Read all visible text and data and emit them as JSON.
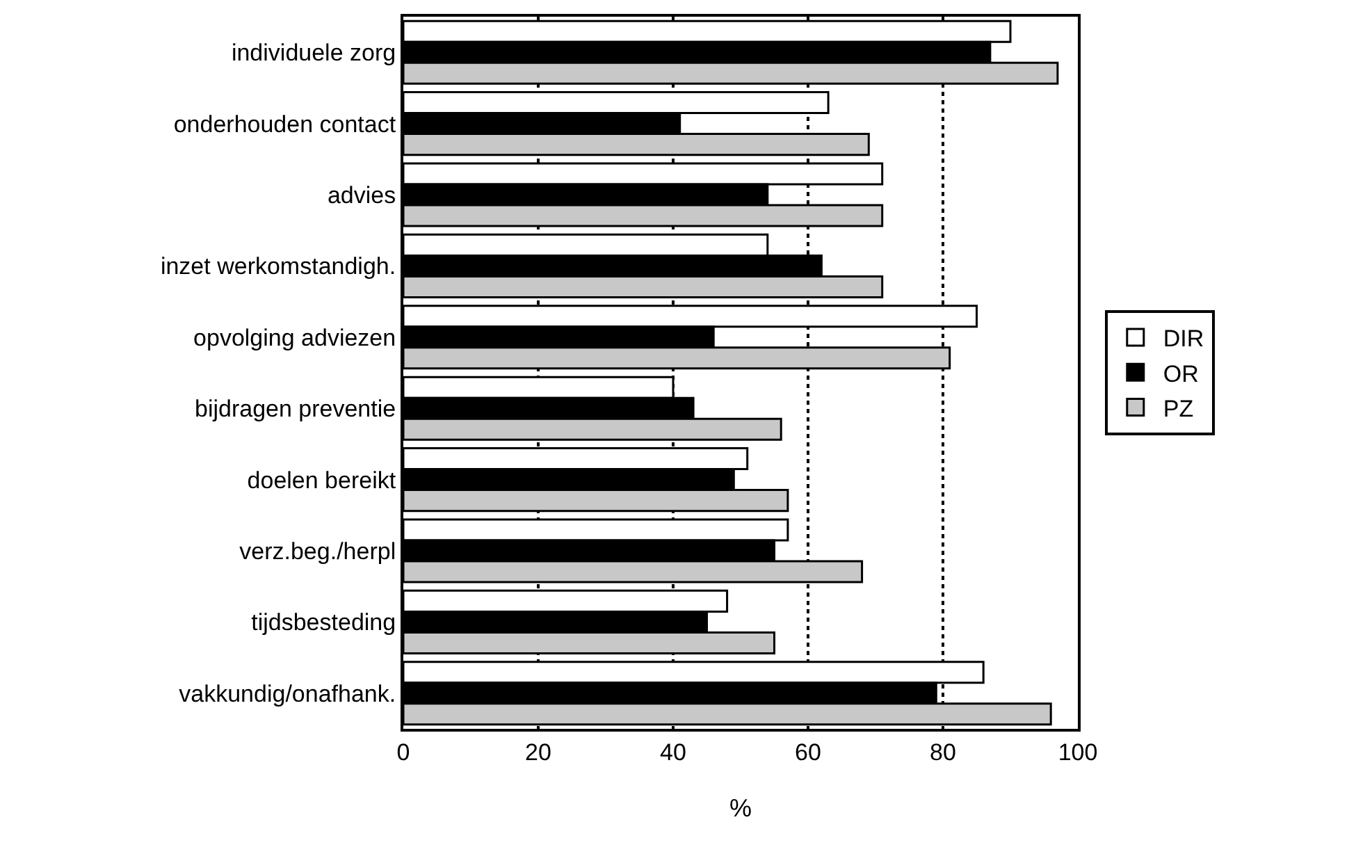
{
  "chart_data": {
    "type": "bar",
    "orientation": "horizontal",
    "xlabel": "%",
    "categories": [
      "individuele zorg",
      "onderhouden contact",
      "advies",
      "inzet werkomstandigh.",
      "opvolging adviezen",
      "bijdragen preventie",
      "doelen bereikt",
      "verz.beg./herpl",
      "tijdsbesteding",
      "vakkundig/onafhank."
    ],
    "series": [
      {
        "name": "DIR",
        "color": "#ffffff",
        "values": [
          90,
          63,
          71,
          54,
          85,
          40,
          51,
          57,
          48,
          86
        ]
      },
      {
        "name": "OR",
        "color": "#000000",
        "values": [
          87,
          41,
          54,
          62,
          46,
          43,
          49,
          55,
          45,
          79
        ]
      },
      {
        "name": "PZ",
        "color": "#c8c8c8",
        "values": [
          97,
          69,
          71,
          71,
          81,
          56,
          57,
          68,
          55,
          96
        ]
      }
    ],
    "xlim": [
      0,
      100
    ],
    "xticks": [
      0,
      20,
      40,
      60,
      80,
      100
    ],
    "grid": "x",
    "legend": "right"
  }
}
